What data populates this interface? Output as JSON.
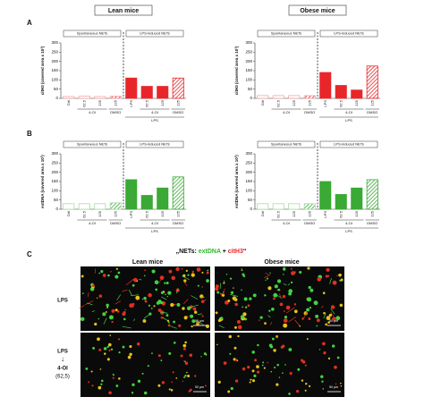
{
  "chart_data": [
    {
      "type": "bar",
      "title": "Lean mice",
      "ylabel": "citH3 (covered area x 10³)",
      "categories": [
        "Ctrl",
        "62.5",
        "125",
        "125",
        "LPS",
        "62.5",
        "125",
        "125"
      ],
      "values": [
        10,
        12,
        10,
        12,
        110,
        65,
        65,
        110
      ],
      "colors": [
        "#f4a6a6",
        "#f4a6a6",
        "#f4a6a6",
        "#f4a6a6",
        "#e8262a",
        "#e8262a",
        "#e8262a",
        "#e8262a"
      ],
      "hatched": [
        false,
        false,
        false,
        true,
        false,
        false,
        false,
        true
      ],
      "ylim": [
        0,
        300
      ],
      "yticks": [
        0,
        50,
        100,
        150,
        200,
        250,
        300
      ],
      "group_labels": [
        "Spontaneous NETs",
        "LPS-induced NETs"
      ],
      "sub_labels": [
        "4-OI",
        "DMSO",
        "4-OI",
        "DMSO"
      ],
      "footer": "LPS",
      "panel": "A"
    },
    {
      "type": "bar",
      "title": "Obese mice",
      "ylabel": "citH3 (covered area x 10³)",
      "categories": [
        "Ctrl",
        "62.5",
        "125",
        "125",
        "LPS",
        "62.5",
        "125",
        "125"
      ],
      "values": [
        15,
        15,
        15,
        15,
        140,
        70,
        45,
        175
      ],
      "colors": [
        "#f4a6a6",
        "#f4a6a6",
        "#f4a6a6",
        "#f4a6a6",
        "#e8262a",
        "#e8262a",
        "#e8262a",
        "#e8262a"
      ],
      "hatched": [
        false,
        false,
        false,
        true,
        false,
        false,
        false,
        true
      ],
      "ylim": [
        0,
        300
      ],
      "yticks": [
        0,
        50,
        100,
        150,
        200,
        250,
        300
      ],
      "group_labels": [
        "Spontaneous NETs",
        "LPS-induced NETs"
      ],
      "sub_labels": [
        "4-OI",
        "DMSO",
        "4-OI",
        "DMSO"
      ],
      "footer": "LPS"
    },
    {
      "type": "bar",
      "ylabel": "extDNA (covered area x 10³)",
      "categories": [
        "Ctrl",
        "62.5",
        "125",
        "125",
        "LPS",
        "62.5",
        "125",
        "125"
      ],
      "values": [
        30,
        30,
        30,
        35,
        160,
        75,
        115,
        175
      ],
      "colors": [
        "#a8dba5",
        "#a8dba5",
        "#a8dba5",
        "#a8dba5",
        "#3aa935",
        "#3aa935",
        "#3aa935",
        "#3aa935"
      ],
      "hatched": [
        false,
        false,
        false,
        true,
        false,
        false,
        false,
        true
      ],
      "ylim": [
        0,
        300
      ],
      "yticks": [
        0,
        50,
        100,
        150,
        200,
        250,
        300
      ],
      "group_labels": [
        "Spontaneous NETs",
        "LPS-induced NETs"
      ],
      "sub_labels": [
        "4-OI",
        "DMSO",
        "4-OI",
        "DMSO"
      ],
      "footer": "LPS",
      "panel": "B"
    },
    {
      "type": "bar",
      "ylabel": "extDNA (covered area x 10³)",
      "categories": [
        "Ctrl",
        "62.5",
        "125",
        "125",
        "LPS",
        "62.5",
        "125",
        "125"
      ],
      "values": [
        30,
        30,
        30,
        30,
        150,
        80,
        115,
        160
      ],
      "colors": [
        "#a8dba5",
        "#a8dba5",
        "#a8dba5",
        "#a8dba5",
        "#3aa935",
        "#3aa935",
        "#3aa935",
        "#3aa935"
      ],
      "hatched": [
        false,
        false,
        false,
        true,
        false,
        false,
        false,
        true
      ],
      "ylim": [
        0,
        300
      ],
      "yticks": [
        0,
        50,
        100,
        150,
        200,
        250,
        300
      ],
      "group_labels": [
        "Spontaneous NETs",
        "LPS-induced NETs"
      ],
      "sub_labels": [
        "4-OI",
        "DMSO",
        "4-OI",
        "DMSO"
      ],
      "footer": "LPS"
    }
  ],
  "figure": {
    "panel": "C",
    "heading_start": "„NETs: ",
    "heading_green": "extDNA",
    "heading_plus": " + ",
    "heading_red": "citH3",
    "heading_end": "“",
    "col_labels": [
      "Lean mice",
      "Obese mice"
    ],
    "row1_label": "LPS",
    "row2_label": "LPS",
    "arrow": "↓",
    "row2_drug": "4-OI",
    "row2_dose": "(62,5)",
    "scale": "50 µm"
  }
}
